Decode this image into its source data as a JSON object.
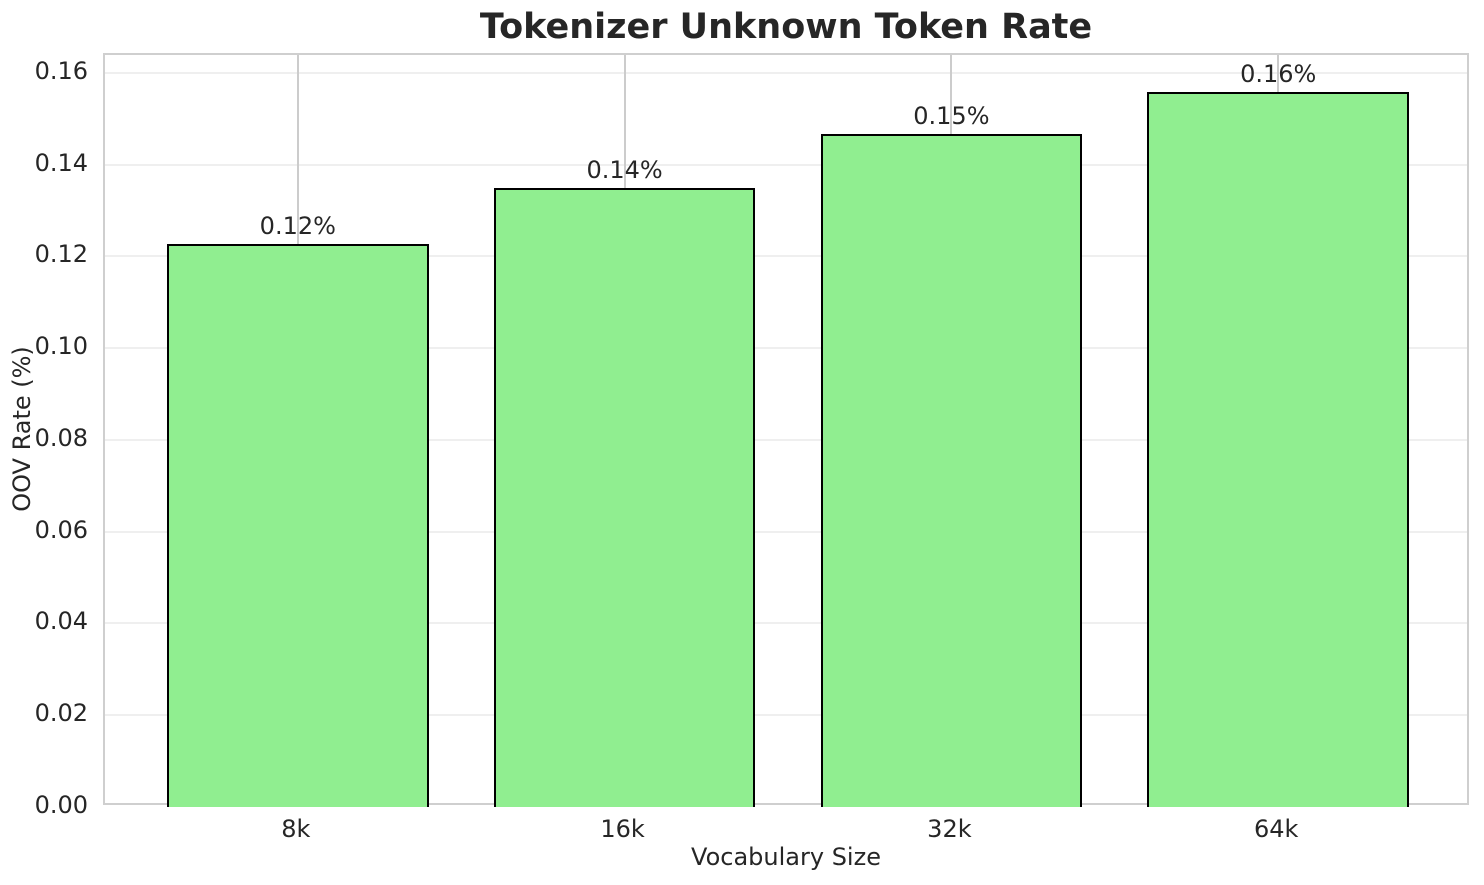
{
  "chart_data": {
    "type": "bar",
    "title": "Tokenizer Unknown Token Rate",
    "xlabel": "Vocabulary Size",
    "ylabel": "OOV Rate (%)",
    "categories": [
      "8k",
      "16k",
      "32k",
      "64k"
    ],
    "values": [
      0.1227,
      0.135,
      0.1467,
      0.1559
    ],
    "bar_labels": [
      "0.12%",
      "0.14%",
      "0.15%",
      "0.16%"
    ],
    "ytick_values": [
      0.0,
      0.02,
      0.04,
      0.06,
      0.08,
      0.1,
      0.12,
      0.14,
      0.16
    ],
    "ytick_labels": [
      "0.00",
      "0.02",
      "0.04",
      "0.06",
      "0.08",
      "0.10",
      "0.12",
      "0.14",
      "0.16"
    ],
    "ylim": [
      0,
      0.1639
    ],
    "xlim": [
      -0.59,
      3.59
    ],
    "bar_width_units": 0.8,
    "grid": true,
    "legend": "none",
    "colors": {
      "bar_fill": "#90EE90",
      "bar_edge": "#000000",
      "grid_horizontal": "#efefef",
      "grid_vertical": "#cccccc",
      "spine": "#cfcfcf",
      "text": "#262626",
      "background": "#ffffff"
    }
  }
}
